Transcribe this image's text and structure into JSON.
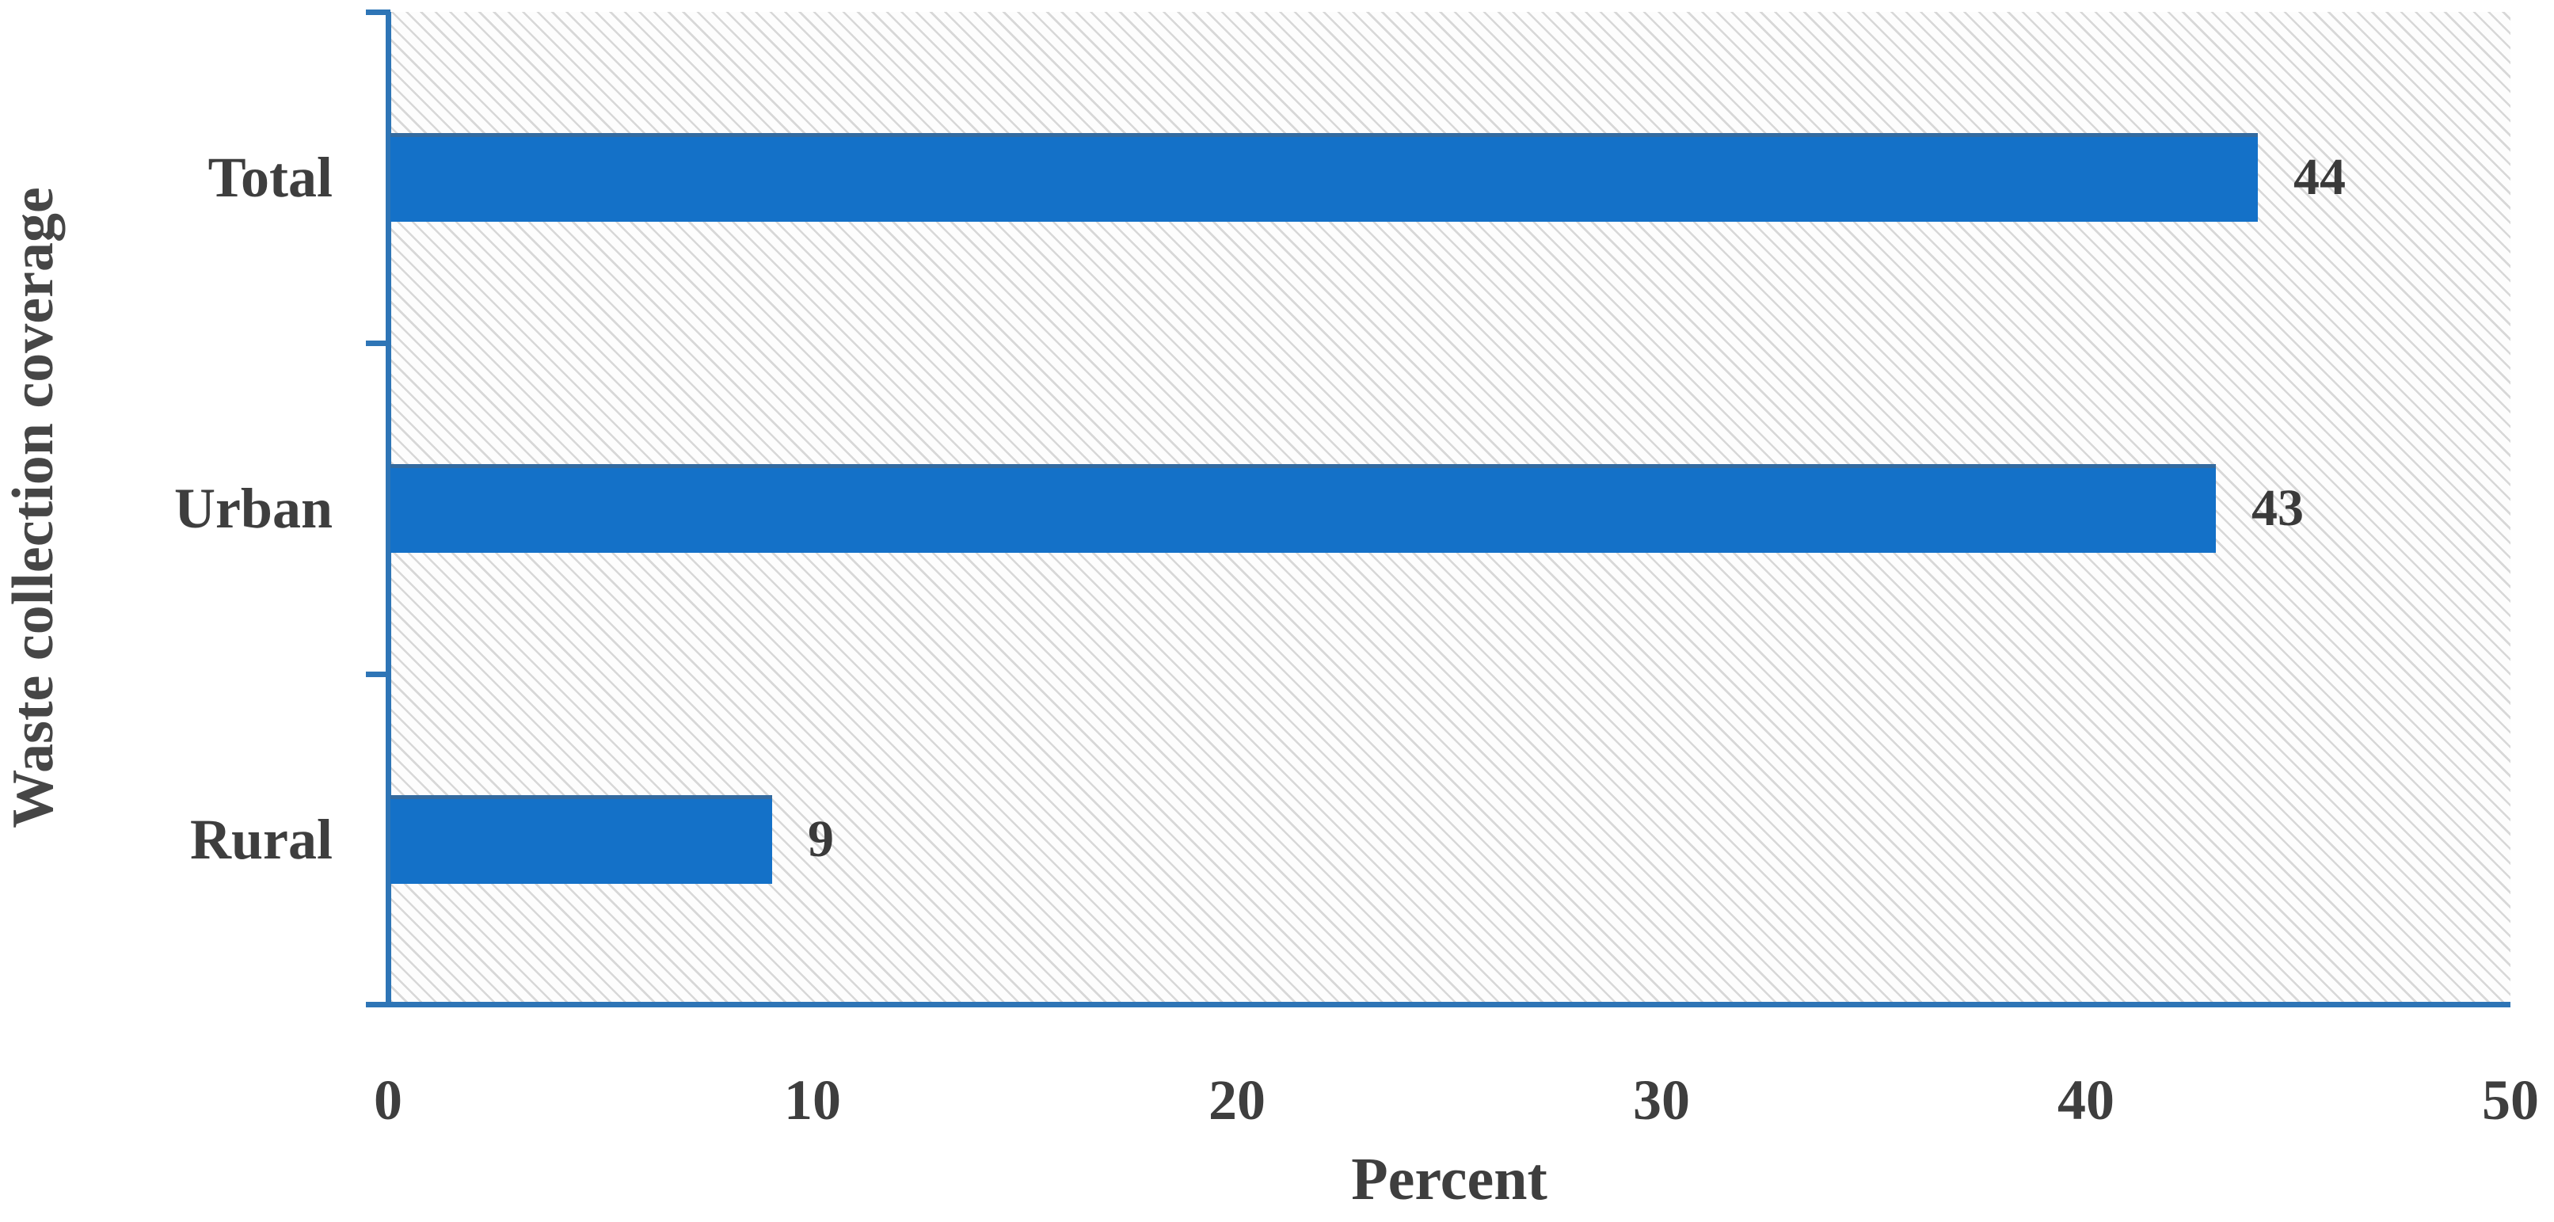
{
  "chart_data": {
    "type": "bar",
    "orientation": "horizontal",
    "title": "",
    "categories": [
      "Total",
      "Urban",
      "Rural"
    ],
    "values": [
      44,
      43,
      9
    ],
    "data_labels": [
      "44",
      "43",
      "9"
    ],
    "xlabel": "Percent",
    "ylabel": "Waste collection coverage",
    "xlim": [
      0,
      50
    ],
    "xticks": [
      0,
      10,
      20,
      30,
      40,
      50
    ],
    "xtick_labels": [
      "0",
      "10",
      "20",
      "30",
      "40",
      "50"
    ],
    "grid": false,
    "legend": false,
    "plot_background": "light-diagonal-hatch",
    "bar_color": "#1471C8",
    "axis_color": "#2E75B6",
    "hatch_color": "#B2B2B2",
    "text_color": "#3E3E3E"
  }
}
